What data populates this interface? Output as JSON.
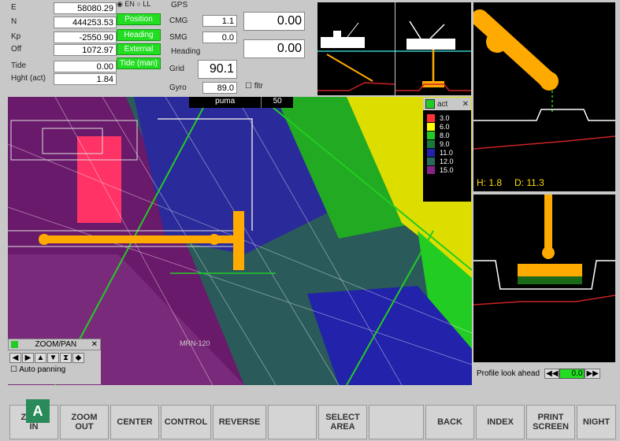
{
  "position": {
    "rows": [
      {
        "label": "E",
        "value": "58080.29"
      },
      {
        "label": "N",
        "value": "444253.53"
      },
      {
        "label": "Kp",
        "value": "-2550.90"
      },
      {
        "label": "Off",
        "value": "1072.97"
      },
      {
        "label": "Tide",
        "value": "0.00"
      },
      {
        "label": "Hght (act)",
        "value": "1.84"
      }
    ],
    "coord_mode": {
      "en": "EN",
      "ll": "LL"
    },
    "buttons": [
      "Position",
      "Heading",
      "External",
      "Tide (man)"
    ]
  },
  "gps": {
    "title": "GPS",
    "cmg_label": "CMG",
    "cmg_value": "1.1",
    "cmg_big": "0.00",
    "smg_label": "SMG",
    "smg_value": "0.0",
    "smg_big": "0.00",
    "heading_title": "Heading",
    "grid_label": "Grid",
    "grid_value": "90.1",
    "gyro_label": "Gyro",
    "gyro_value": "89.0",
    "filter_label": "fltr"
  },
  "map": {
    "top_label_1": "puma",
    "top_label_2": "50",
    "feature_label": "MRN-120"
  },
  "legend": {
    "title": "act",
    "entries": [
      {
        "value": "3.0",
        "color": "#ff3333"
      },
      {
        "value": "6.0",
        "color": "#ffff00"
      },
      {
        "value": "8.0",
        "color": "#22cc22"
      },
      {
        "value": "9.0",
        "color": "#1a7a3a"
      },
      {
        "value": "11.0",
        "color": "#2222aa"
      },
      {
        "value": "12.0",
        "color": "#2a6a5a"
      },
      {
        "value": "15.0",
        "color": "#882288"
      }
    ]
  },
  "zoompan": {
    "title": "ZOOM/PAN",
    "auto_label": "Auto panning"
  },
  "profile": {
    "h_label": "H: 1.8",
    "d_label": "D: 11.3",
    "lookahead_label": "Profile look ahead",
    "lookahead_value": "0.0"
  },
  "badge": "A",
  "toolbar": [
    {
      "id": "zoom-in",
      "label": "ZOOM\nIN"
    },
    {
      "id": "zoom-out",
      "label": "ZOOM\nOUT"
    },
    {
      "id": "center",
      "label": "CENTER"
    },
    {
      "id": "control",
      "label": "CONTROL"
    },
    {
      "id": "reverse",
      "label": "REVERSE"
    },
    {
      "id": "blank-1",
      "label": ""
    },
    {
      "id": "select-area",
      "label": "SELECT\nAREA"
    },
    {
      "id": "blank-2",
      "label": ""
    },
    {
      "id": "back",
      "label": "BACK"
    },
    {
      "id": "index",
      "label": "INDEX"
    },
    {
      "id": "print-screen",
      "label": "PRINT\nSCREEN"
    },
    {
      "id": "night",
      "label": "NIGHT"
    }
  ],
  "colors": {
    "accent_green": "#22dd22",
    "pipe_orange": "#ffaa00",
    "badge_green": "#2a8a5a"
  }
}
